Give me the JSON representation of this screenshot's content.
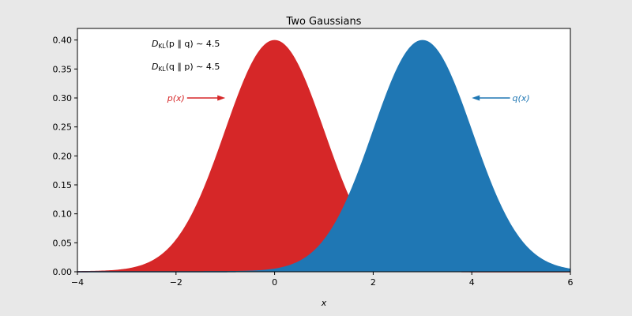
{
  "chart_data": {
    "type": "area",
    "title": "Two Gaussians",
    "xlabel": "x",
    "ylabel": "",
    "xlim": [
      -4,
      6
    ],
    "ylim": [
      0,
      0.42
    ],
    "x_ticks": [
      -4,
      -2,
      0,
      2,
      4,
      6
    ],
    "y_ticks": [
      0.0,
      0.05,
      0.1,
      0.15,
      0.2,
      0.25,
      0.3,
      0.35,
      0.4
    ],
    "grid": false,
    "legend": "none",
    "series": [
      {
        "name": "p(x)",
        "distribution": "normal",
        "mean": 0,
        "std": 1,
        "color": "#d62728"
      },
      {
        "name": "q(x)",
        "distribution": "normal",
        "mean": 3,
        "std": 1,
        "color": "#1f77b4"
      }
    ],
    "annotations": [
      {
        "text": "p(x)",
        "series": 0,
        "arrow_to": [
          -1,
          0.3
        ],
        "text_at": [
          -2,
          0.3
        ],
        "color": "#d62728"
      },
      {
        "text": "q(x)",
        "series": 1,
        "arrow_to": [
          4,
          0.3
        ],
        "text_at": [
          5,
          0.3
        ],
        "color": "#1f77b4"
      }
    ],
    "divergences": [
      {
        "D": "D",
        "sub": "KL",
        "args": "(p ∥ q) ∼ 4.5"
      },
      {
        "D": "D",
        "sub": "KL",
        "args": "(q ∥ p) ∼ 4.5"
      }
    ]
  }
}
